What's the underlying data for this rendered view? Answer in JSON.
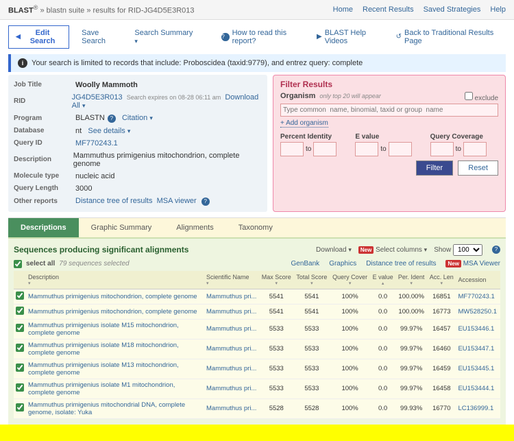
{
  "topbar": {
    "brand": "BLAST",
    "sup": "®",
    "crumb1": "blastn suite",
    "crumb2": "results for RID-JG4D5E3R013",
    "links": [
      "Home",
      "Recent Results",
      "Saved Strategies",
      "Help"
    ]
  },
  "subbar": {
    "edit": "Edit Search",
    "save": "Save Search",
    "summary": "Search Summary",
    "help_read": "How to read this report?",
    "help_videos": "BLAST Help Videos",
    "back": "Back to Traditional Results Page"
  },
  "info": "Your search is limited to records that include: Proboscidea (taxid:9779), and entrez query: complete",
  "meta": {
    "job_title_lbl": "Job Title",
    "job_title": "Woolly Mammoth",
    "rid_lbl": "RID",
    "rid": "JG4D5E3R013",
    "rid_exp": "Search expires on 08-28 06:11 am",
    "dl_all": "Download All",
    "program_lbl": "Program",
    "program": "BLASTN",
    "citation": "Citation",
    "db_lbl": "Database",
    "db": "nt",
    "db_details": "See details",
    "qid_lbl": "Query ID",
    "qid": "MF770243.1",
    "desc_lbl": "Description",
    "desc": "Mammuthus primigenius mitochondrion, complete genome",
    "mol_lbl": "Molecule type",
    "mol": "nucleic acid",
    "qlen_lbl": "Query Length",
    "qlen": "3000",
    "other_lbl": "Other reports",
    "other1": "Distance tree of results",
    "other2": "MSA viewer"
  },
  "filter": {
    "title": "Filter Results",
    "organism": "Organism",
    "hint": "only top 20 will appear",
    "exclude": "exclude",
    "placeholder": "Type common  name, binomial, taxid or group  name",
    "add": "Add organism",
    "pid": "Percent Identity",
    "eval": "E value",
    "qcov": "Query Coverage",
    "to": "to",
    "filter_btn": "Filter",
    "reset_btn": "Reset"
  },
  "tabs": [
    "Descriptions",
    "Graphic Summary",
    "Alignments",
    "Taxonomy"
  ],
  "results": {
    "heading": "Sequences producing significant alignments",
    "download": "Download",
    "selcols": "Select columns",
    "show": "Show",
    "show_val": "100",
    "select_all": "select all",
    "sel_count": "79 sequences selected",
    "links": [
      "GenBank",
      "Graphics",
      "Distance tree of results",
      "MSA Viewer"
    ],
    "cols": [
      "Description",
      "Scientific Name",
      "Max Score",
      "Total Score",
      "Query Cover",
      "E value",
      "Per. Ident",
      "Acc. Len",
      "Accession"
    ],
    "rows": [
      {
        "d": "Mammuthus primigenius mitochondrion, complete genome",
        "s": "Mammuthus pri...",
        "ms": "5541",
        "ts": "5541",
        "qc": "100%",
        "e": "0.0",
        "pi": "100.00%",
        "al": "16851",
        "acc": "MF770243.1"
      },
      {
        "d": "Mammuthus primigenius mitochondrion, complete genome",
        "s": "Mammuthus pri...",
        "ms": "5541",
        "ts": "5541",
        "qc": "100%",
        "e": "0.0",
        "pi": "100.00%",
        "al": "16773",
        "acc": "MW528250.1"
      },
      {
        "d": "Mammuthus primigenius isolate M15 mitochondrion, complete genome",
        "s": "Mammuthus pri...",
        "ms": "5533",
        "ts": "5533",
        "qc": "100%",
        "e": "0.0",
        "pi": "99.97%",
        "al": "16457",
        "acc": "EU153446.1"
      },
      {
        "d": "Mammuthus primigenius isolate M18 mitochondrion, complete genome",
        "s": "Mammuthus pri...",
        "ms": "5533",
        "ts": "5533",
        "qc": "100%",
        "e": "0.0",
        "pi": "99.97%",
        "al": "16460",
        "acc": "EU153447.1"
      },
      {
        "d": "Mammuthus primigenius isolate M13 mitochondrion, complete genome",
        "s": "Mammuthus pri...",
        "ms": "5533",
        "ts": "5533",
        "qc": "100%",
        "e": "0.0",
        "pi": "99.97%",
        "al": "16459",
        "acc": "EU153445.1"
      },
      {
        "d": "Mammuthus primigenius isolate M1 mitochondrion, complete genome",
        "s": "Mammuthus pri...",
        "ms": "5533",
        "ts": "5533",
        "qc": "100%",
        "e": "0.0",
        "pi": "99.97%",
        "al": "16458",
        "acc": "EU153444.1"
      },
      {
        "d": "Mammuthus primigenius mitochondrial DNA, complete genome, isolate: Yuka",
        "s": "Mammuthus pri...",
        "ms": "5528",
        "ts": "5528",
        "qc": "100%",
        "e": "0.0",
        "pi": "99.93%",
        "al": "16770",
        "acc": "LC136999.1"
      }
    ]
  }
}
